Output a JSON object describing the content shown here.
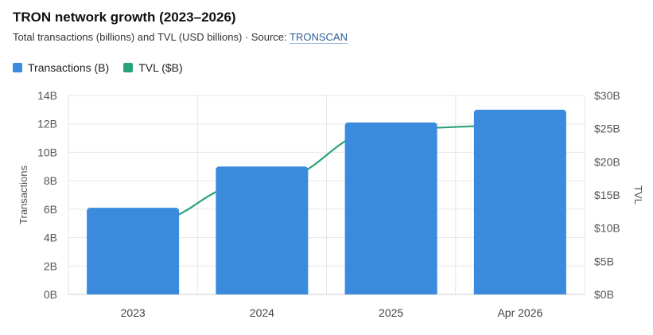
{
  "header": {
    "title": "TRON network growth (2023–2026)",
    "subtitle_prefix": "Total transactions (billions) and TVL (USD billions) · Source: ",
    "source_link": "TRONSCAN"
  },
  "colors": {
    "bars": "#3a8bde",
    "line": "#2aa377",
    "grid": "#e6e6e6",
    "axis_text": "#555555"
  },
  "chart_data": {
    "type": "bar",
    "categories": [
      "2023",
      "2024",
      "2025",
      "Apr 2026"
    ],
    "series": [
      {
        "name": "Transactions (B)",
        "type": "bar",
        "axis": "left",
        "values": [
          6.1,
          9.0,
          12.1,
          13.0
        ]
      },
      {
        "name": "TVL ($B)",
        "type": "line",
        "axis": "right",
        "values": [
          10.5,
          17.0,
          25.0,
          25.5
        ]
      }
    ],
    "ylabel": "Transactions",
    "y2label": "TVL",
    "ylim": [
      0,
      14
    ],
    "y2lim": [
      0,
      30
    ],
    "yticks": [
      "0B",
      "2B",
      "4B",
      "6B",
      "8B",
      "10B",
      "12B",
      "14B"
    ],
    "y2ticks": [
      "$0B",
      "$5B",
      "$10B",
      "$15B",
      "$20B",
      "$25B",
      "$30B"
    ],
    "grid": true,
    "legend": "top-left"
  }
}
